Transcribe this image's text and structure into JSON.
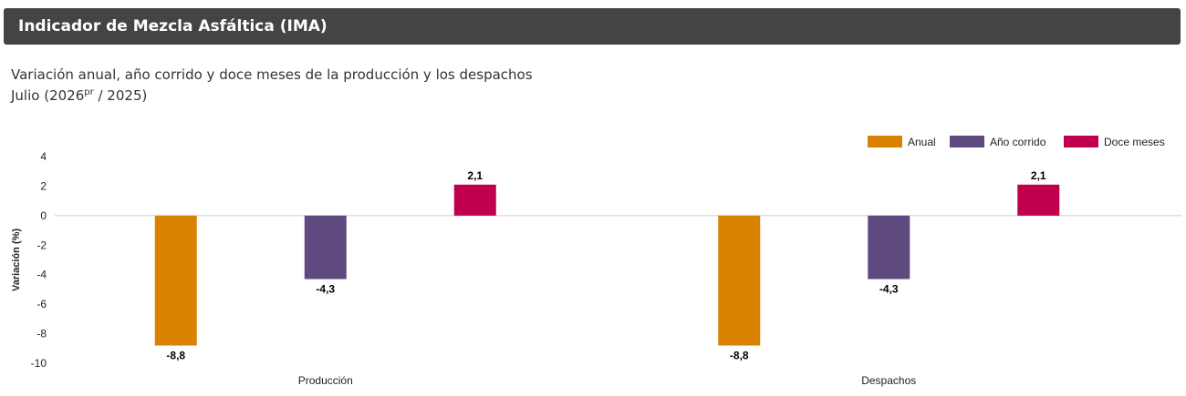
{
  "header": {
    "title": "Indicador de Mezcla Asfáltica (IMA)"
  },
  "subtitle": {
    "line1": "Variación anual, año corrido y doce meses de la producción y los despachos",
    "line2_prefix": "Julio (2026",
    "line2_sup": "pr",
    "line2_suffix": " / 2025)"
  },
  "chart_data": {
    "type": "bar",
    "title": "",
    "xlabel": "",
    "ylabel": "Variación (%)",
    "ylim": [
      -10,
      4
    ],
    "yticks": [
      4,
      2,
      0,
      -2,
      -4,
      -6,
      -8,
      -10
    ],
    "categories": [
      "Producción",
      "Despachos"
    ],
    "series": [
      {
        "name": "Anual",
        "color": "#D98200",
        "values": [
          -8.8,
          -8.8
        ],
        "labels": [
          "-8,8",
          "-8,8"
        ]
      },
      {
        "name": "Año corrido",
        "color": "#5E4A7E",
        "values": [
          -4.3,
          -4.3
        ],
        "labels": [
          "-4,3",
          "-4,3"
        ]
      },
      {
        "name": "Doce meses",
        "color": "#C0004E",
        "values": [
          2.1,
          2.1
        ],
        "labels": [
          "2,1",
          "2,1"
        ]
      }
    ],
    "grid": false,
    "legend_position": "top-right"
  }
}
